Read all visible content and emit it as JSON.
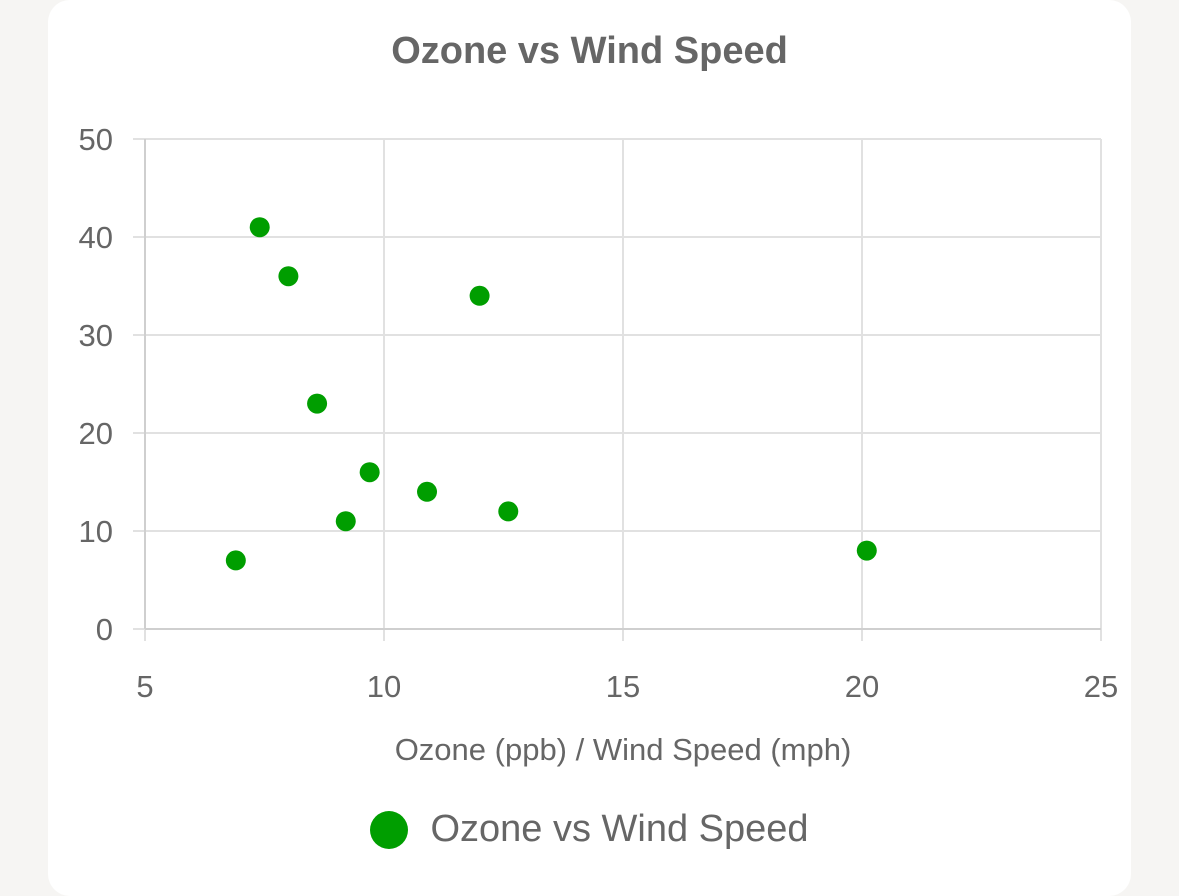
{
  "chart_data": {
    "type": "scatter",
    "title": "Ozone vs Wind Speed",
    "xlabel": "Ozone (ppb) / Wind Speed (mph)",
    "ylabel": "",
    "xlim": [
      5,
      25
    ],
    "ylim": [
      0,
      50
    ],
    "x_ticks": [
      5,
      10,
      15,
      20,
      25
    ],
    "y_ticks": [
      0,
      10,
      20,
      30,
      40,
      50
    ],
    "grid": true,
    "legend_position": "bottom",
    "series": [
      {
        "name": "Ozone vs Wind Speed",
        "color": "#009e00",
        "points": [
          {
            "x": 7.4,
            "y": 41
          },
          {
            "x": 8.0,
            "y": 36
          },
          {
            "x": 12.0,
            "y": 34
          },
          {
            "x": 8.6,
            "y": 23
          },
          {
            "x": 9.7,
            "y": 16
          },
          {
            "x": 10.9,
            "y": 14
          },
          {
            "x": 12.6,
            "y": 12
          },
          {
            "x": 9.2,
            "y": 11
          },
          {
            "x": 20.1,
            "y": 8
          },
          {
            "x": 6.9,
            "y": 7
          }
        ]
      }
    ]
  }
}
